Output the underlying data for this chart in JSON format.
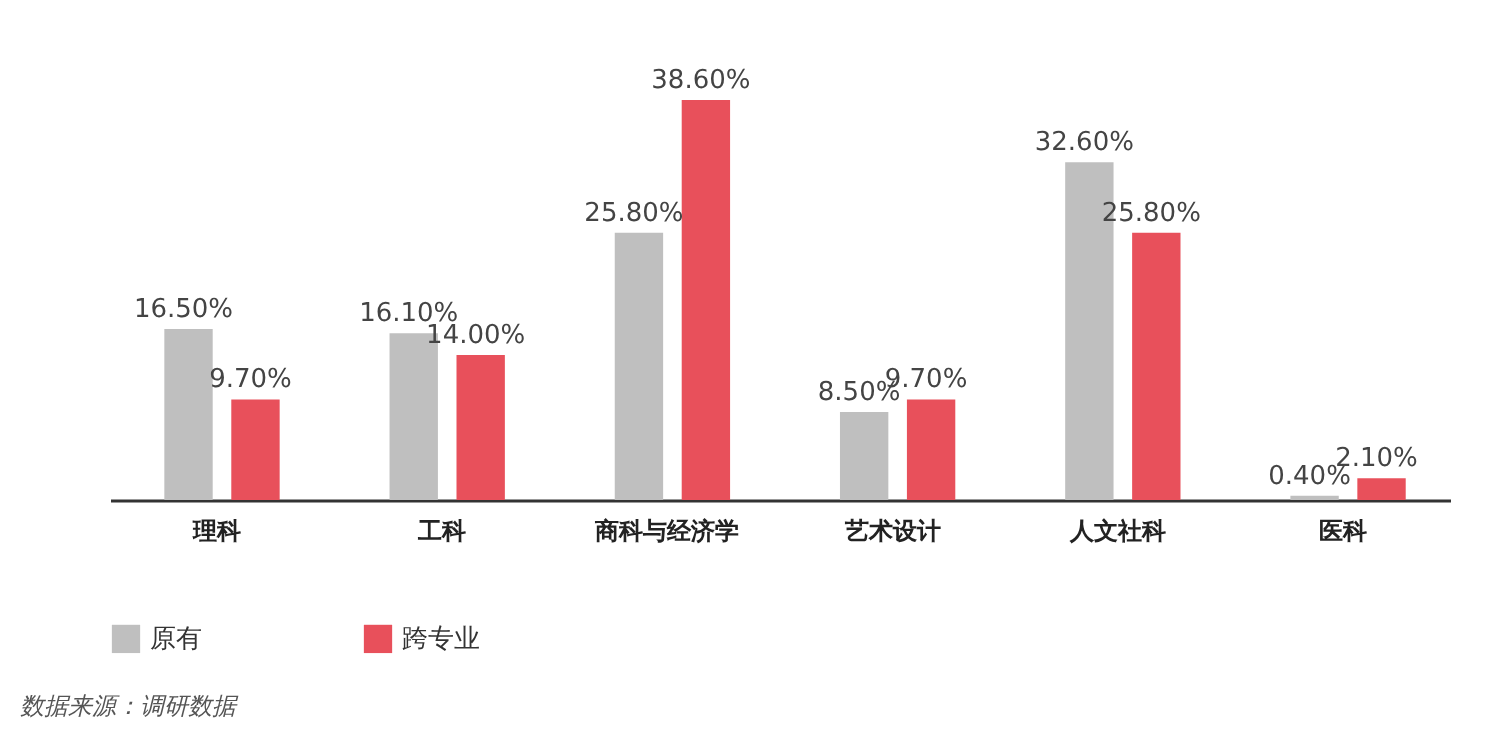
{
  "chart_data": {
    "type": "bar",
    "categories": [
      "理科",
      "工科",
      "商科与经济学",
      "艺术设计",
      "人文社科",
      "医科"
    ],
    "series": [
      {
        "name": "原有",
        "color": "#bfbfbf",
        "values": [
          16.5,
          16.1,
          25.8,
          8.5,
          32.6,
          0.4
        ],
        "value_labels": [
          "16.50%",
          "16.10%",
          "25.80%",
          "8.50%",
          "32.60%",
          "0.40%"
        ]
      },
      {
        "name": "跨专业",
        "color": "#e8505b",
        "values": [
          9.7,
          14.0,
          38.6,
          9.7,
          25.8,
          2.1
        ],
        "value_labels": [
          "9.70%",
          "14.00%",
          "38.60%",
          "9.70%",
          "25.80%",
          "2.10%"
        ]
      }
    ],
    "legend": "bottom",
    "grid": false,
    "annotations": [
      "数据来源：调研数据"
    ]
  }
}
